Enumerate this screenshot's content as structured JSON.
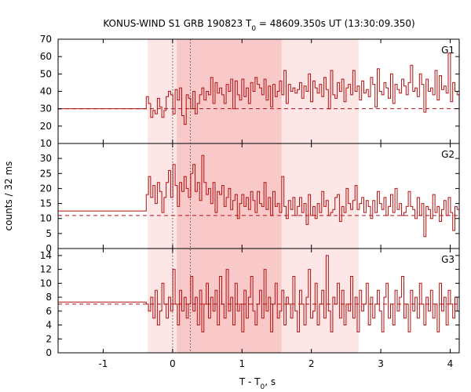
{
  "chart_data": {
    "type": "line",
    "title": "KONUS-WIND S1 GRB 190823 T",
    "title_sub": "0",
    "title_rest": " = 48609.350s UT (13:30:09.350)",
    "xlabel_main": "T - T",
    "xlabel_sub": "0",
    "xlabel_rest": ", s",
    "ylabel": "counts / 32 ms",
    "xlim": [
      -1.65,
      4.13
    ],
    "x_ticks": [
      {
        "value": -1,
        "label": "-1"
      },
      {
        "value": 0,
        "label": "0"
      },
      {
        "value": 1,
        "label": "1"
      },
      {
        "value": 2,
        "label": "2"
      },
      {
        "value": 3,
        "label": "3"
      },
      {
        "value": 4,
        "label": "4"
      }
    ],
    "colors": {
      "line": "#b01010",
      "band_light": "#fde6e6",
      "band_dark": "#f9c8c8",
      "frame": "#000000",
      "dotted": "#555555"
    },
    "bands": [
      {
        "x0": -0.36,
        "x1": 2.68,
        "shade": "light"
      },
      {
        "x0": 0.06,
        "x1": 1.57,
        "shade": "dark"
      }
    ],
    "vlines": [
      0,
      0.256
    ],
    "bin_width": 0.032,
    "panels": [
      {
        "label": "G1",
        "ylim": [
          10,
          70
        ],
        "yticks": [
          10,
          20,
          30,
          40,
          50,
          60,
          70
        ],
        "background": 30,
        "pre_level": 30,
        "values": [
          37,
          33,
          25,
          29,
          27,
          36,
          31,
          25,
          29,
          37,
          40,
          38,
          27,
          41,
          35,
          42,
          26,
          21,
          38,
          36,
          30,
          40,
          27,
          33,
          38,
          42,
          35,
          40,
          38,
          48,
          33,
          45,
          39,
          42,
          38,
          33,
          44,
          40,
          47,
          30,
          46,
          38,
          35,
          47,
          37,
          42,
          33,
          45,
          40,
          48,
          44,
          42,
          38,
          47,
          35,
          43,
          31,
          44,
          37,
          40,
          46,
          38,
          52,
          33,
          44,
          40,
          42,
          39,
          41,
          45,
          36,
          43,
          40,
          50,
          34,
          46,
          42,
          39,
          44,
          37,
          48,
          41,
          30,
          52,
          38,
          36,
          45,
          40,
          47,
          34,
          42,
          44,
          38,
          52,
          40,
          43,
          35,
          46,
          39,
          41,
          37,
          48,
          44,
          31,
          53,
          40,
          38,
          45,
          42,
          36,
          50,
          33,
          44,
          41,
          39,
          47,
          43,
          38,
          45,
          55,
          40,
          42,
          37,
          50,
          44,
          28,
          47,
          40,
          42,
          38,
          52,
          35,
          49,
          41,
          43,
          39,
          62,
          34,
          45,
          40,
          38,
          50,
          42,
          36,
          44,
          47,
          33,
          51,
          39,
          41,
          46,
          35,
          43,
          40,
          48,
          37,
          45,
          42,
          39,
          50,
          34,
          44,
          41,
          47,
          38,
          43
        ]
      },
      {
        "label": "G2",
        "ylim": [
          0,
          35
        ],
        "yticks": [
          0,
          5,
          10,
          15,
          20,
          25,
          30
        ],
        "background": 11,
        "pre_level": 12.5,
        "values": [
          18,
          24,
          17,
          21,
          15,
          22,
          19,
          12,
          17,
          22,
          26,
          17,
          28,
          21,
          14,
          22,
          19,
          24,
          20,
          17,
          25,
          28,
          19,
          22,
          16,
          31,
          22,
          18,
          20,
          15,
          22,
          12,
          19,
          18,
          21,
          14,
          17,
          20,
          13,
          16,
          18,
          10,
          15,
          18,
          14,
          17,
          13,
          19,
          16,
          12,
          19,
          15,
          14,
          22,
          13,
          17,
          11,
          19,
          14,
          15,
          12,
          24,
          14,
          10,
          16,
          13,
          17,
          11,
          14,
          17,
          12,
          15,
          8,
          18,
          11,
          14,
          10,
          15,
          12,
          19,
          14,
          16,
          11,
          12,
          13,
          17,
          18,
          9,
          14,
          12,
          20,
          15,
          13,
          16,
          21,
          13,
          15,
          17,
          12,
          16,
          14,
          10,
          16,
          12,
          19,
          15,
          13,
          17,
          11,
          14,
          18,
          12,
          20,
          13,
          15,
          11,
          12,
          14,
          19,
          14,
          13,
          10,
          17,
          11,
          15,
          4,
          14,
          13,
          10,
          18,
          12,
          14,
          9,
          13,
          16,
          11,
          17,
          12,
          6,
          14,
          13,
          11,
          16,
          9,
          14,
          12,
          10,
          17,
          12,
          8,
          14,
          11,
          13,
          9,
          15,
          12,
          11,
          10,
          14,
          7,
          13,
          11,
          16,
          10,
          13,
          12
        ]
      },
      {
        "label": "G3",
        "ylim": [
          0,
          15
        ],
        "yticks": [
          0,
          2,
          4,
          6,
          8,
          10,
          12,
          14
        ],
        "background": 7,
        "pre_level": 7.3,
        "values": [
          7,
          6,
          8,
          5,
          9,
          4,
          6,
          10,
          7,
          5,
          8,
          6,
          12,
          7,
          4,
          9,
          6,
          8,
          5,
          7,
          11,
          6,
          8,
          4,
          9,
          3,
          7,
          10,
          5,
          8,
          6,
          9,
          4,
          11,
          7,
          5,
          12,
          6,
          8,
          4,
          10,
          6,
          7,
          3,
          9,
          5,
          8,
          11,
          6,
          4,
          7,
          9,
          5,
          12,
          6,
          8,
          3,
          7,
          10,
          5,
          6,
          9,
          4,
          8,
          7,
          5,
          11,
          6,
          3,
          9,
          7,
          4,
          8,
          12,
          5,
          6,
          10,
          4,
          7,
          9,
          5,
          14,
          6,
          3,
          8,
          7,
          10,
          5,
          9,
          4,
          7,
          6,
          11,
          5,
          8,
          3,
          9,
          6,
          7,
          10,
          4,
          8,
          5,
          7,
          9,
          6,
          3,
          8,
          10,
          5,
          7,
          4,
          9,
          6,
          8,
          11,
          5,
          7,
          3,
          9,
          6,
          8,
          5,
          10,
          7,
          4,
          8,
          6,
          9,
          5,
          7,
          3,
          10,
          6,
          8,
          4,
          9,
          7,
          5,
          8,
          6,
          1,
          9,
          7,
          4,
          8,
          6,
          10,
          5,
          7,
          3,
          9,
          6,
          8,
          2,
          7,
          5,
          9,
          6,
          4,
          8,
          7,
          5,
          9,
          6,
          7
        ]
      }
    ]
  }
}
